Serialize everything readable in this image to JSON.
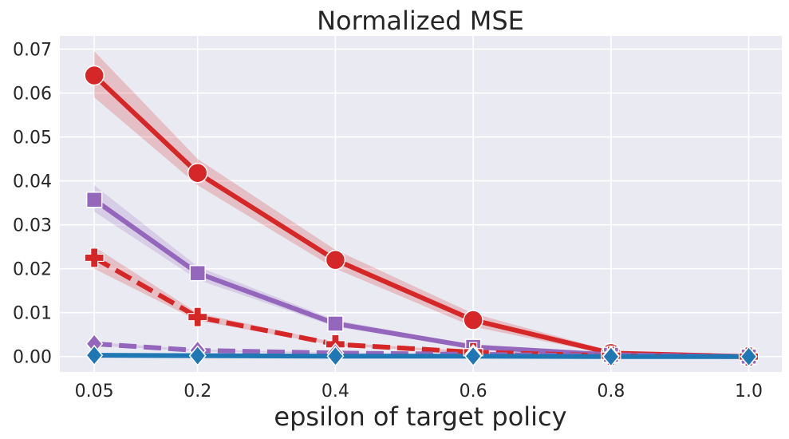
{
  "chart_data": {
    "type": "line",
    "title": "Normalized MSE",
    "xlabel": "epsilon of target policy",
    "ylabel": "",
    "x": [
      0.05,
      0.2,
      0.4,
      0.6,
      0.8,
      1.0
    ],
    "x_tick_labels": [
      "0.05",
      "0.2",
      "0.4",
      "0.6",
      "0.8",
      "1.0"
    ],
    "y_ticks": [
      0.0,
      0.01,
      0.02,
      0.03,
      0.04,
      0.05,
      0.06,
      0.07
    ],
    "y_tick_labels": [
      "0.00",
      "0.01",
      "0.02",
      "0.03",
      "0.04",
      "0.05",
      "0.06",
      "0.07"
    ],
    "ylim": [
      -0.0035,
      0.073
    ],
    "xlim": [
      0.0,
      1.048
    ],
    "grid": true,
    "background": "#eaeaf2",
    "series": [
      {
        "values": [
          0.064,
          0.0418,
          0.022,
          0.0083,
          0.0008,
          0.0
        ],
        "lower": [
          0.059,
          0.039,
          0.02,
          0.0068,
          0.0004,
          0.0
        ],
        "upper": [
          0.0695,
          0.045,
          0.0243,
          0.0098,
          0.0013,
          0.0001
        ],
        "color": "#d62728",
        "dash": "solid",
        "marker": "circle"
      },
      {
        "values": [
          0.0357,
          0.019,
          0.0075,
          0.0022,
          0.0004,
          0.0
        ],
        "lower": [
          0.033,
          0.0175,
          0.0068,
          0.0019,
          0.0003,
          0.0
        ],
        "upper": [
          0.039,
          0.0205,
          0.0083,
          0.0026,
          0.0006,
          0.0001
        ],
        "color": "#9467bd",
        "dash": "solid",
        "marker": "square"
      },
      {
        "values": [
          0.0225,
          0.009,
          0.0028,
          0.001,
          0.0002,
          0.0
        ],
        "lower": [
          0.02,
          0.0082,
          0.0025,
          0.0008,
          0.0001,
          0.0
        ],
        "upper": [
          0.025,
          0.0099,
          0.0032,
          0.0012,
          0.0003,
          0.0001
        ],
        "color": "#d62728",
        "dash": "dashed",
        "marker": "plus"
      },
      {
        "values": [
          0.0029,
          0.0014,
          0.0008,
          0.0005,
          0.0002,
          0.0
        ],
        "lower": [
          0.0025,
          0.0012,
          0.0007,
          0.0004,
          0.0001,
          0.0
        ],
        "upper": [
          0.0033,
          0.0016,
          0.0009,
          0.0006,
          0.0003,
          0.0001
        ],
        "color": "#9467bd",
        "dash": "dashed",
        "marker": "diamond"
      },
      {
        "values": [
          0.0003,
          0.0002,
          0.0001,
          0.0001,
          0.0,
          0.0
        ],
        "lower": [
          0.0002,
          0.0001,
          0.0,
          0.0,
          0.0,
          0.0
        ],
        "upper": [
          0.0004,
          0.0003,
          0.0002,
          0.0001,
          0.0001,
          0.0
        ],
        "color": "#1f77b4",
        "dash": "solid",
        "marker": "diamond"
      }
    ]
  }
}
